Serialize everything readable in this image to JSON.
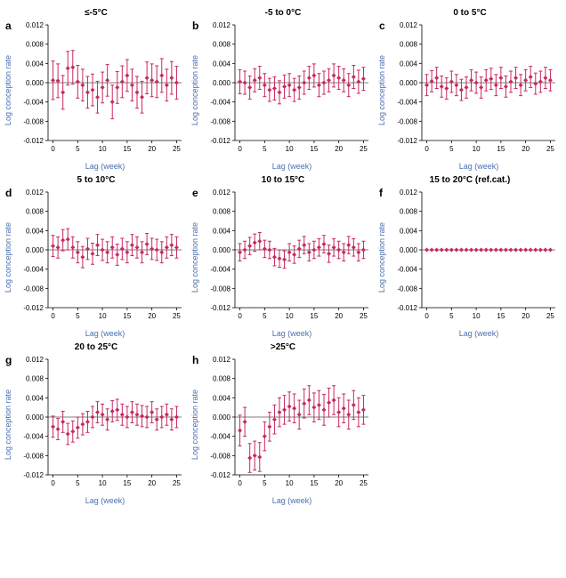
{
  "figure": {
    "background_color": "#ffffff",
    "marker_color": "#c62862",
    "axis_label_color": "#4a6fb0",
    "tick_fontsize": 8,
    "label_fontsize": 9,
    "title_fontsize": 10,
    "letter_fontsize": 12,
    "ylim": [
      -0.012,
      0.012
    ],
    "yticks": [
      -0.012,
      -0.008,
      -0.004,
      0.0,
      0.004,
      0.008,
      0.012
    ],
    "ytick_labels": [
      "-0.012",
      "-0.008",
      "-0.004",
      "0.000",
      "0.004",
      "0.008",
      "0.012"
    ],
    "xlim": [
      -1,
      26
    ],
    "xticks": [
      0,
      5,
      10,
      15,
      20,
      25
    ],
    "ylabel": "Log conception rate",
    "xlabel": "Lag (week)",
    "marker_size": 2.5,
    "errorbar_cap": 2
  },
  "panels": [
    {
      "letter": "a",
      "title": "≤-5°C",
      "x": [
        0,
        1,
        2,
        3,
        4,
        5,
        6,
        7,
        8,
        9,
        10,
        11,
        12,
        13,
        14,
        15,
        16,
        17,
        18,
        19,
        20,
        21,
        22,
        23,
        24,
        25
      ],
      "y": [
        0.0005,
        0.0004,
        -0.002,
        0.003,
        0.0032,
        0.0002,
        -0.0005,
        -0.002,
        -0.0015,
        -0.003,
        -0.001,
        0.0005,
        -0.004,
        -0.001,
        0.0002,
        0.0015,
        -0.0005,
        -0.002,
        -0.003,
        0.001,
        0.0005,
        0.0002,
        0.0015,
        -0.0005,
        0.001,
        0.0
      ],
      "err": [
        0.004,
        0.0035,
        0.0035,
        0.0035,
        0.0035,
        0.0034,
        0.0033,
        0.0033,
        0.0033,
        0.0033,
        0.0032,
        0.0033,
        0.0035,
        0.0033,
        0.0033,
        0.0033,
        0.0033,
        0.0033,
        0.0033,
        0.0033,
        0.0034,
        0.0033,
        0.0035,
        0.0033,
        0.0034,
        0.0034
      ]
    },
    {
      "letter": "b",
      "title": "-5 to 0°C",
      "x": [
        0,
        1,
        2,
        3,
        4,
        5,
        6,
        7,
        8,
        9,
        10,
        11,
        12,
        13,
        14,
        15,
        16,
        17,
        18,
        19,
        20,
        21,
        22,
        23,
        24,
        25
      ],
      "y": [
        0.0002,
        0.0,
        -0.001,
        0.0005,
        0.001,
        -0.0005,
        -0.0015,
        -0.0012,
        -0.002,
        -0.0008,
        -0.0005,
        -0.0015,
        -0.001,
        0.0,
        0.001,
        0.0015,
        -0.0005,
        0.0,
        0.0005,
        0.0015,
        0.001,
        0.0005,
        -0.0005,
        0.0012,
        0.0002,
        0.0008
      ],
      "err": [
        0.0025,
        0.0024,
        0.0024,
        0.0024,
        0.0024,
        0.0024,
        0.0024,
        0.0024,
        0.0024,
        0.0024,
        0.0024,
        0.0024,
        0.0024,
        0.0024,
        0.0024,
        0.0024,
        0.0024,
        0.0024,
        0.0024,
        0.0024,
        0.0024,
        0.0024,
        0.0024,
        0.0024,
        0.0024,
        0.0024
      ]
    },
    {
      "letter": "c",
      "title": "0 to 5°C",
      "x": [
        0,
        1,
        2,
        3,
        4,
        5,
        6,
        7,
        8,
        9,
        10,
        11,
        12,
        13,
        14,
        15,
        16,
        17,
        18,
        19,
        20,
        21,
        22,
        23,
        24,
        25
      ],
      "y": [
        -0.0005,
        0.0003,
        0.001,
        -0.0008,
        -0.0012,
        0.0002,
        -0.0005,
        -0.0015,
        -0.001,
        0.0005,
        0.0,
        -0.001,
        0.0005,
        0.0008,
        -0.0005,
        0.001,
        -0.0008,
        0.0002,
        0.001,
        -0.0005,
        0.0005,
        0.0012,
        -0.0002,
        0.0002,
        0.001,
        0.0005
      ],
      "err": [
        0.0022,
        0.0022,
        0.0022,
        0.0022,
        0.0022,
        0.0022,
        0.0022,
        0.0022,
        0.0022,
        0.0022,
        0.0022,
        0.0022,
        0.0022,
        0.0022,
        0.0022,
        0.0022,
        0.0022,
        0.0022,
        0.0022,
        0.0022,
        0.0022,
        0.0022,
        0.0022,
        0.0022,
        0.0022,
        0.0022
      ]
    },
    {
      "letter": "d",
      "title": "5 to 10°C",
      "x": [
        0,
        1,
        2,
        3,
        4,
        5,
        6,
        7,
        8,
        9,
        10,
        11,
        12,
        13,
        14,
        15,
        16,
        17,
        18,
        19,
        20,
        21,
        22,
        23,
        24,
        25
      ],
      "y": [
        0.0008,
        0.0005,
        0.002,
        0.0022,
        0.0005,
        -0.0005,
        -0.0015,
        0.0002,
        -0.0008,
        0.001,
        0.0,
        -0.0005,
        0.0005,
        -0.001,
        0.0002,
        -0.0005,
        0.001,
        0.0005,
        -0.0005,
        0.0012,
        0.0002,
        0.0,
        -0.0005,
        0.0005,
        0.001,
        0.0005
      ],
      "err": [
        0.0022,
        0.0022,
        0.0022,
        0.0022,
        0.0022,
        0.0022,
        0.0022,
        0.0022,
        0.0022,
        0.0022,
        0.0022,
        0.0022,
        0.0022,
        0.0022,
        0.0022,
        0.0022,
        0.0022,
        0.0022,
        0.0022,
        0.0022,
        0.0022,
        0.0022,
        0.0022,
        0.0022,
        0.0022,
        0.0022
      ]
    },
    {
      "letter": "e",
      "title": "10 to 15°C",
      "x": [
        0,
        1,
        2,
        3,
        4,
        5,
        6,
        7,
        8,
        9,
        10,
        11,
        12,
        13,
        14,
        15,
        16,
        17,
        18,
        19,
        20,
        21,
        22,
        23,
        24,
        25
      ],
      "y": [
        -0.0005,
        0.0,
        0.0008,
        0.0015,
        0.0018,
        0.0002,
        0.0,
        -0.0015,
        -0.0018,
        -0.002,
        -0.0005,
        -0.001,
        0.0002,
        0.001,
        -0.0005,
        0.0,
        0.0005,
        0.0012,
        -0.0008,
        0.0005,
        0.0,
        -0.0005,
        0.001,
        0.0005,
        -0.0005,
        0.0
      ],
      "err": [
        0.0018,
        0.0018,
        0.0018,
        0.0018,
        0.0018,
        0.0018,
        0.0018,
        0.0018,
        0.0018,
        0.0018,
        0.0018,
        0.0018,
        0.0018,
        0.0018,
        0.0018,
        0.0018,
        0.0018,
        0.0018,
        0.0018,
        0.0018,
        0.0018,
        0.0018,
        0.0018,
        0.0018,
        0.0018,
        0.0018
      ]
    },
    {
      "letter": "f",
      "title": "15 to 20°C (ref.cat.)",
      "x": [
        0,
        1,
        2,
        3,
        4,
        5,
        6,
        7,
        8,
        9,
        10,
        11,
        12,
        13,
        14,
        15,
        16,
        17,
        18,
        19,
        20,
        21,
        22,
        23,
        24,
        25
      ],
      "y": [
        0,
        0,
        0,
        0,
        0,
        0,
        0,
        0,
        0,
        0,
        0,
        0,
        0,
        0,
        0,
        0,
        0,
        0,
        0,
        0,
        0,
        0,
        0,
        0,
        0,
        0
      ],
      "err": [
        0,
        0,
        0,
        0,
        0,
        0,
        0,
        0,
        0,
        0,
        0,
        0,
        0,
        0,
        0,
        0,
        0,
        0,
        0,
        0,
        0,
        0,
        0,
        0,
        0,
        0
      ]
    },
    {
      "letter": "g",
      "title": "20 to 25°C",
      "x": [
        0,
        1,
        2,
        3,
        4,
        5,
        6,
        7,
        8,
        9,
        10,
        11,
        12,
        13,
        14,
        15,
        16,
        17,
        18,
        19,
        20,
        21,
        22,
        23,
        24,
        25
      ],
      "y": [
        -0.002,
        -0.0025,
        -0.001,
        -0.0035,
        -0.003,
        -0.0022,
        -0.0015,
        -0.001,
        0.0,
        0.001,
        0.0005,
        -0.0005,
        0.0012,
        0.0015,
        0.0005,
        0.0,
        0.001,
        0.0005,
        0.0002,
        0.0,
        0.001,
        -0.0005,
        0.0,
        0.0005,
        -0.0005,
        0.0
      ],
      "err": [
        0.0022,
        0.0022,
        0.0022,
        0.0022,
        0.0022,
        0.0022,
        0.0022,
        0.0022,
        0.0022,
        0.0022,
        0.0022,
        0.0022,
        0.0022,
        0.0022,
        0.0022,
        0.0022,
        0.0022,
        0.0022,
        0.0022,
        0.0022,
        0.0022,
        0.0022,
        0.0022,
        0.0022,
        0.0022,
        0.0022
      ]
    },
    {
      "letter": "h",
      "title": ">25°C",
      "x": [
        0,
        1,
        2,
        3,
        4,
        5,
        6,
        7,
        8,
        9,
        10,
        11,
        12,
        13,
        14,
        15,
        16,
        17,
        18,
        19,
        20,
        21,
        22,
        23,
        24,
        25
      ],
      "y": [
        -0.0028,
        -0.001,
        -0.0085,
        -0.008,
        -0.0083,
        -0.004,
        -0.002,
        -0.0005,
        0.001,
        0.0015,
        0.0022,
        0.0018,
        0.0005,
        0.0028,
        0.0035,
        0.002,
        0.0025,
        0.0015,
        0.003,
        0.0035,
        0.001,
        0.0018,
        0.0005,
        0.0025,
        0.001,
        0.0015
      ],
      "err": [
        0.0032,
        0.003,
        0.003,
        0.003,
        0.003,
        0.003,
        0.003,
        0.003,
        0.003,
        0.003,
        0.003,
        0.003,
        0.003,
        0.003,
        0.003,
        0.003,
        0.003,
        0.0032,
        0.003,
        0.003,
        0.003,
        0.003,
        0.003,
        0.003,
        0.003,
        0.003
      ]
    }
  ]
}
